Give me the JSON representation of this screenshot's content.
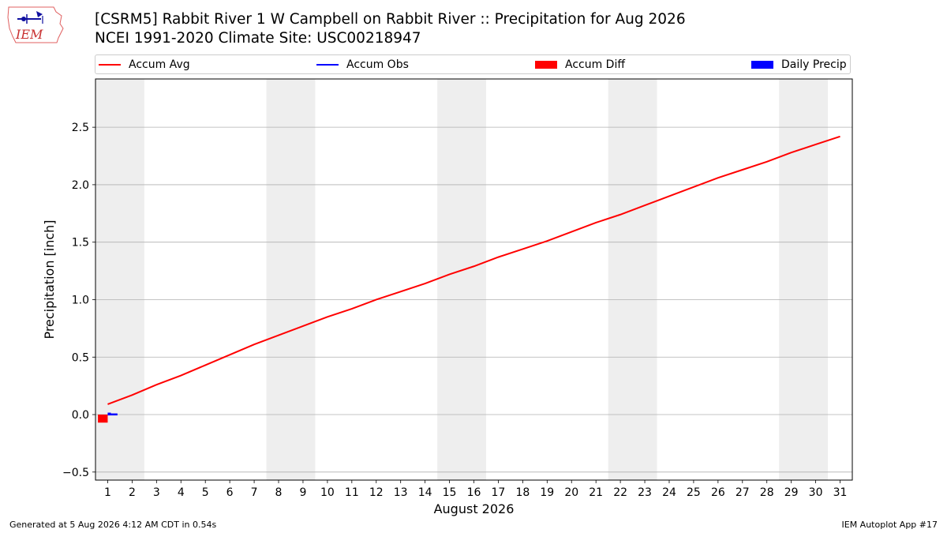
{
  "header": {
    "logo_text": "IEM",
    "title_line1": "[CSRM5] Rabbit River 1 W Campbell on Rabbit River :: Precipitation for Aug 2026",
    "title_line2": "NCEI 1991-2020 Climate Site: USC00218947"
  },
  "legend": {
    "items": [
      {
        "label": "Accum Avg",
        "kind": "line",
        "color": "#ff0000"
      },
      {
        "label": "Accum Obs",
        "kind": "line",
        "color": "#0000ff"
      },
      {
        "label": "Accum Diff",
        "kind": "box",
        "color": "#ff0000"
      },
      {
        "label": "Daily Precip",
        "kind": "box",
        "color": "#0000ff"
      }
    ]
  },
  "chart_data": {
    "type": "line",
    "xlabel": "August 2026",
    "ylabel": "Precipitation [inch]",
    "xlim": [
      0.5,
      31.5
    ],
    "ylim": [
      -0.57,
      2.92
    ],
    "yticks": [
      -0.5,
      0.0,
      0.5,
      1.0,
      1.5,
      2.0,
      2.5
    ],
    "ytick_labels": [
      "−0.5",
      "0.0",
      "0.5",
      "1.0",
      "1.5",
      "2.0",
      "2.5"
    ],
    "xticks": [
      1,
      2,
      3,
      4,
      5,
      6,
      7,
      8,
      9,
      10,
      11,
      12,
      13,
      14,
      15,
      16,
      17,
      18,
      19,
      20,
      21,
      22,
      23,
      24,
      25,
      26,
      27,
      28,
      29,
      30,
      31
    ],
    "grid": "y",
    "weekend_shading": [
      [
        0.5,
        2.5
      ],
      [
        7.5,
        9.5
      ],
      [
        14.5,
        16.5
      ],
      [
        21.5,
        23.5
      ],
      [
        28.5,
        30.5
      ]
    ],
    "series": [
      {
        "name": "Accum Avg",
        "color": "#ff0000",
        "x": [
          1,
          2,
          3,
          4,
          5,
          6,
          7,
          8,
          9,
          10,
          11,
          12,
          13,
          14,
          15,
          16,
          17,
          18,
          19,
          20,
          21,
          22,
          23,
          24,
          25,
          26,
          27,
          28,
          29,
          30,
          31
        ],
        "values": [
          0.09,
          0.17,
          0.26,
          0.34,
          0.43,
          0.52,
          0.61,
          0.69,
          0.77,
          0.85,
          0.92,
          1.0,
          1.07,
          1.14,
          1.22,
          1.29,
          1.37,
          1.44,
          1.51,
          1.59,
          1.67,
          1.74,
          1.82,
          1.9,
          1.98,
          2.06,
          2.13,
          2.2,
          2.28,
          2.35,
          2.42
        ]
      },
      {
        "name": "Accum Obs",
        "color": "#0000ff",
        "x": [
          1
        ],
        "values": [
          0.01
        ]
      }
    ],
    "bars": [
      {
        "name": "Accum Diff",
        "color": "#ff0000",
        "x": [
          0.8
        ],
        "values": [
          -0.07
        ]
      },
      {
        "name": "Daily Precip",
        "color": "#0000ff",
        "x": [
          1.2
        ],
        "values": [
          0.01
        ]
      }
    ]
  },
  "footer": {
    "left": "Generated at 5 Aug 2026 4:12 AM CDT in 0.54s",
    "right": "IEM Autoplot App #17"
  }
}
